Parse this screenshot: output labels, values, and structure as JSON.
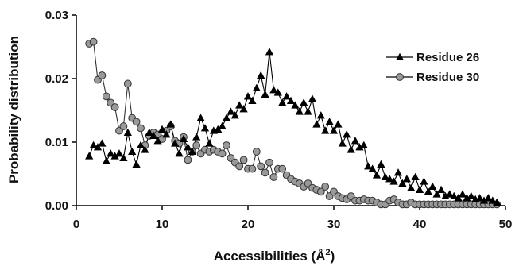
{
  "chart_data": {
    "type": "line",
    "title": "",
    "xlabel": "Accessibilities (Å",
    "xlabel_sup": "2",
    "xlabel_close": ")",
    "ylabel": "Probability distribution",
    "xlim": [
      0,
      50
    ],
    "ylim": [
      0,
      0.03
    ],
    "x_ticks": [
      0,
      10,
      20,
      30,
      40,
      50
    ],
    "x_tick_labels": [
      "0",
      "10",
      "20",
      "30",
      "40",
      "50"
    ],
    "y_ticks": [
      0,
      0.01,
      0.02,
      0.03
    ],
    "y_tick_labels": [
      "0.00",
      "0.01",
      "0.02",
      "0.03"
    ],
    "grid": false,
    "legend_position": "top-right",
    "series": [
      {
        "name": "Residue 26",
        "marker": "triangle",
        "color": "#000000",
        "x": [
          1.5,
          2.0,
          2.5,
          3.0,
          3.5,
          4.0,
          4.5,
          5.0,
          5.5,
          6.0,
          6.5,
          7.0,
          7.5,
          8.0,
          8.5,
          9.0,
          9.5,
          10.0,
          10.5,
          11.0,
          11.5,
          12.0,
          12.5,
          13.0,
          13.5,
          14.0,
          14.5,
          15.0,
          15.5,
          16.0,
          16.5,
          17.0,
          17.5,
          18.0,
          18.5,
          19.0,
          19.5,
          20.0,
          20.5,
          21.0,
          21.5,
          22.0,
          22.5,
          23.0,
          23.5,
          24.0,
          24.5,
          25.0,
          25.5,
          26.0,
          26.5,
          27.0,
          27.5,
          28.0,
          28.5,
          29.0,
          29.5,
          30.0,
          30.5,
          31.0,
          31.5,
          32.0,
          32.5,
          33.0,
          33.5,
          34.0,
          34.5,
          35.0,
          35.5,
          36.0,
          36.5,
          37.0,
          37.5,
          38.0,
          38.5,
          39.0,
          39.5,
          40.0,
          40.5,
          41.0,
          41.5,
          42.0,
          42.5,
          43.0,
          43.5,
          44.0,
          44.5,
          45.0,
          45.5,
          46.0,
          46.5,
          47.0,
          47.5,
          48.0,
          48.5,
          49.0
        ],
        "values": [
          0.0078,
          0.0095,
          0.0092,
          0.0098,
          0.007,
          0.0082,
          0.0078,
          0.0082,
          0.0075,
          0.0115,
          0.0085,
          0.0065,
          0.0095,
          0.0088,
          0.0115,
          0.011,
          0.0102,
          0.012,
          0.0112,
          0.0128,
          0.0098,
          0.0082,
          0.0105,
          0.0092,
          0.0085,
          0.0108,
          0.0138,
          0.0122,
          0.0098,
          0.0118,
          0.012,
          0.0125,
          0.0138,
          0.0148,
          0.0142,
          0.0158,
          0.0152,
          0.0172,
          0.0165,
          0.0185,
          0.0205,
          0.0175,
          0.0242,
          0.0182,
          0.0178,
          0.0162,
          0.0172,
          0.0165,
          0.0158,
          0.0148,
          0.0162,
          0.0148,
          0.0168,
          0.0128,
          0.0142,
          0.0118,
          0.0132,
          0.0118,
          0.0128,
          0.0098,
          0.0112,
          0.0088,
          0.0102,
          0.0092,
          0.0095,
          0.0062,
          0.0058,
          0.0048,
          0.0065,
          0.0045,
          0.0042,
          0.0038,
          0.0052,
          0.0035,
          0.0042,
          0.0028,
          0.0045,
          0.0025,
          0.0038,
          0.0022,
          0.003,
          0.0018,
          0.0025,
          0.0015,
          0.0018,
          0.0015,
          0.0012,
          0.0018,
          0.0012,
          0.0015,
          0.001,
          0.0012,
          0.0008,
          0.0012,
          0.0008,
          0.0005
        ]
      },
      {
        "name": "Residue 30",
        "marker": "circle",
        "color": "#999999",
        "x": [
          1.5,
          2.0,
          2.5,
          3.0,
          3.5,
          4.0,
          4.5,
          5.0,
          5.5,
          6.0,
          6.5,
          7.0,
          7.5,
          8.0,
          8.5,
          9.0,
          9.5,
          10.0,
          10.5,
          11.0,
          11.5,
          12.0,
          12.5,
          13.0,
          13.5,
          14.0,
          14.5,
          15.0,
          15.5,
          16.0,
          16.5,
          17.0,
          17.5,
          18.0,
          18.5,
          19.0,
          19.5,
          20.0,
          20.5,
          21.0,
          21.5,
          22.0,
          22.5,
          23.0,
          23.5,
          24.0,
          24.5,
          25.0,
          25.5,
          26.0,
          26.5,
          27.0,
          27.5,
          28.0,
          28.5,
          29.0,
          29.5,
          30.0,
          30.5,
          31.0,
          31.5,
          32.0,
          32.5,
          33.0,
          33.5,
          34.0,
          34.5,
          35.0,
          35.5,
          36.0,
          36.5,
          37.0,
          37.5,
          38.0,
          38.5,
          39.0,
          39.5,
          40.0,
          40.5,
          41.0,
          41.5,
          42.0,
          42.5,
          43.0,
          43.5,
          44.0,
          44.5,
          45.0,
          45.5,
          46.0,
          46.5,
          47.0,
          47.5,
          48.0,
          48.5,
          49.0
        ],
        "values": [
          0.0255,
          0.0258,
          0.0198,
          0.0205,
          0.0172,
          0.0162,
          0.0155,
          0.0118,
          0.0125,
          0.0192,
          0.0138,
          0.0132,
          0.0122,
          0.0095,
          0.011,
          0.0115,
          0.0112,
          0.0105,
          0.0118,
          0.0125,
          0.0102,
          0.0098,
          0.0108,
          0.0072,
          0.0085,
          0.0095,
          0.0082,
          0.0088,
          0.0085,
          0.0088,
          0.0085,
          0.0082,
          0.0095,
          0.0075,
          0.0068,
          0.0062,
          0.0072,
          0.0058,
          0.0058,
          0.0085,
          0.0062,
          0.0052,
          0.0068,
          0.0045,
          0.0058,
          0.0058,
          0.0048,
          0.0042,
          0.0038,
          0.0035,
          0.003,
          0.0035,
          0.0028,
          0.0025,
          0.0022,
          0.003,
          0.0015,
          0.0022,
          0.0015,
          0.0012,
          0.001,
          0.0015,
          0.0008,
          0.0008,
          0.001,
          0.0008,
          0.0008,
          0.0005,
          0.0002,
          0.0002,
          0.0008,
          0.001,
          0.0005,
          0.0002,
          0.0002,
          0.0005,
          0.0002,
          0.0002,
          0.0002,
          0.0002,
          0.0002,
          0.0002,
          0.0002,
          0.0002,
          0.0002,
          0.0002,
          0.0002,
          0.0002,
          0.0002,
          0.0002,
          0.0002,
          0.0002,
          0.0002,
          0.0002,
          0.0002,
          0.0002
        ]
      }
    ]
  }
}
